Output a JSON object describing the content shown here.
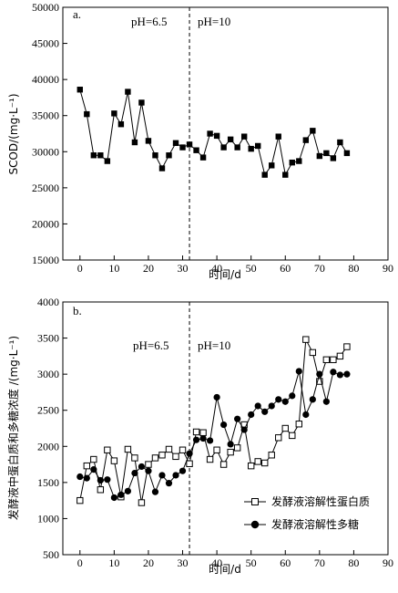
{
  "chart_data": [
    {
      "type": "line",
      "panel_label": "a.",
      "ylabel": "SCOD/(mg·L⁻¹)",
      "xlabel": "时间/d",
      "xlim": [
        -5,
        90
      ],
      "ylim": [
        15000,
        50000
      ],
      "xticks": [
        0,
        10,
        20,
        30,
        40,
        50,
        60,
        70,
        80,
        90
      ],
      "yticks": [
        15000,
        20000,
        25000,
        30000,
        35000,
        40000,
        45000,
        50000
      ],
      "grid": false,
      "divider_x": 32,
      "annotations": [
        "pH=6.5",
        "pH=10"
      ],
      "series": [
        {
          "marker": "filled-square",
          "x": [
            0,
            2,
            4,
            6,
            8,
            10,
            12,
            14,
            16,
            18,
            20,
            22,
            24,
            26,
            28,
            30,
            32,
            34,
            36,
            38,
            40,
            42,
            44,
            46,
            48,
            50,
            52,
            54,
            56,
            58,
            60,
            62,
            64,
            66,
            68,
            70,
            72,
            74,
            76,
            78
          ],
          "y": [
            38600,
            35200,
            29500,
            29500,
            28700,
            35300,
            33800,
            38300,
            31300,
            36800,
            31500,
            29500,
            27700,
            29500,
            31200,
            30600,
            31000,
            30200,
            29200,
            32500,
            32200,
            30600,
            31700,
            30600,
            32100,
            30400,
            30800,
            26800,
            28100,
            32100,
            26800,
            28500,
            28700,
            31600,
            32900,
            29400,
            29800,
            29100,
            31300,
            29800
          ]
        }
      ]
    },
    {
      "type": "line",
      "panel_label": "b.",
      "ylabel": "发酵液中蛋白质和多糖浓度 /(mg·L⁻¹)",
      "xlabel": "时间/d",
      "xlim": [
        -5,
        90
      ],
      "ylim": [
        500,
        4000
      ],
      "xticks": [
        0,
        10,
        20,
        30,
        40,
        50,
        60,
        70,
        80,
        90
      ],
      "yticks": [
        500,
        1000,
        1500,
        2000,
        2500,
        3000,
        3500,
        4000
      ],
      "grid": false,
      "divider_x": 32,
      "annotations": [
        "pH=6.5",
        "pH=10"
      ],
      "legend_position": "lower-right",
      "series": [
        {
          "name": "发酵液溶解性蛋白质",
          "marker": "open-square",
          "x": [
            0,
            2,
            4,
            6,
            8,
            10,
            12,
            14,
            16,
            18,
            20,
            22,
            24,
            26,
            28,
            30,
            32,
            34,
            36,
            38,
            40,
            42,
            44,
            46,
            48,
            50,
            52,
            54,
            56,
            58,
            60,
            62,
            64,
            66,
            68,
            70,
            72,
            74,
            76,
            78
          ],
          "y": [
            1250,
            1730,
            1820,
            1400,
            1950,
            1800,
            1300,
            1960,
            1840,
            1220,
            1750,
            1840,
            1880,
            1960,
            1860,
            1950,
            1760,
            2200,
            2190,
            1820,
            1950,
            1750,
            1920,
            1980,
            2300,
            1730,
            1790,
            1770,
            1880,
            2120,
            2250,
            2150,
            2310,
            3480,
            3300,
            2900,
            3200,
            3200,
            3250,
            3380
          ]
        },
        {
          "name": "发酵液溶解性多糖",
          "marker": "filled-circle",
          "x": [
            0,
            2,
            4,
            6,
            8,
            10,
            12,
            14,
            16,
            18,
            20,
            22,
            24,
            26,
            28,
            30,
            32,
            34,
            36,
            38,
            40,
            42,
            44,
            46,
            48,
            50,
            52,
            54,
            56,
            58,
            60,
            62,
            64,
            66,
            68,
            70,
            72,
            74,
            76,
            78
          ],
          "y": [
            1580,
            1560,
            1680,
            1530,
            1540,
            1290,
            1330,
            1380,
            1630,
            1720,
            1660,
            1370,
            1600,
            1490,
            1600,
            1660,
            1900,
            2090,
            2110,
            2080,
            2680,
            2300,
            2030,
            2380,
            2230,
            2440,
            2560,
            2480,
            2560,
            2650,
            2620,
            2700,
            3040,
            2440,
            2650,
            3000,
            2620,
            3030,
            2990,
            3000
          ]
        }
      ]
    }
  ]
}
